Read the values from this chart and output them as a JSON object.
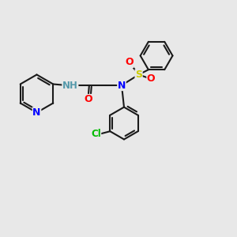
{
  "bg_color": "#e8e8e8",
  "bond_color": "#1a1a1a",
  "bond_width": 1.5,
  "atom_colors": {
    "N": "#0000ff",
    "O": "#ff0000",
    "S": "#cccc00",
    "Cl": "#00bb00",
    "NH": "#5599aa"
  },
  "font_size": 9,
  "fig_size": [
    3.0,
    3.0
  ],
  "dpi": 100,
  "xlim": [
    0,
    10
  ],
  "ylim": [
    0,
    10
  ]
}
